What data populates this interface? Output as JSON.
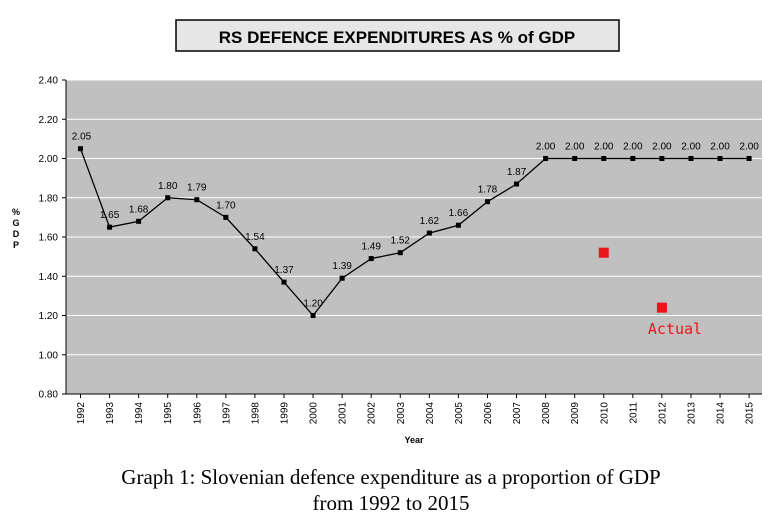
{
  "chart_data": {
    "type": "line",
    "title": "RS DEFENCE EXPENDITURES AS % of GDP",
    "xlabel": "Year",
    "ylabel": "% G D P",
    "ylim": [
      0.8,
      2.4
    ],
    "yticks": [
      "0.80",
      "1.00",
      "1.20",
      "1.40",
      "1.60",
      "1.80",
      "2.00",
      "2.20",
      "2.40"
    ],
    "grid": true,
    "categories": [
      "1992",
      "1993",
      "1994",
      "1995",
      "1996",
      "1997",
      "1998",
      "1999",
      "2000",
      "2001",
      "2002",
      "2003",
      "2004",
      "2005",
      "2006",
      "2007",
      "2008",
      "2009",
      "2010",
      "2011",
      "2012",
      "2013",
      "2014",
      "2015"
    ],
    "series": [
      {
        "values": [
          2.05,
          1.65,
          1.68,
          1.8,
          1.79,
          1.7,
          1.54,
          1.37,
          1.2,
          1.39,
          1.49,
          1.52,
          1.62,
          1.66,
          1.78,
          1.87,
          2.0,
          2.0,
          2.0,
          2.0,
          2.0,
          2.0,
          2.0,
          2.0
        ],
        "labels": [
          "2.05",
          "1.65",
          "1.68",
          "1.80",
          "1.79",
          "1.70",
          "1.54",
          "1.37",
          "1.20",
          "1.39",
          "1.49",
          "1.52",
          "1.62",
          "1.66",
          "1.78",
          "1.87",
          "2.00",
          "2.00",
          "2.00",
          "2.00",
          "2.00",
          "2.00",
          "2.00",
          "2.00"
        ],
        "color": "#000000"
      }
    ],
    "actual": {
      "label": "Actual",
      "color": "#e8161b",
      "points": [
        {
          "x": "2010",
          "y": 1.52
        },
        {
          "x": "2012",
          "y": 1.24
        }
      ]
    }
  },
  "caption": {
    "line1": "Graph 1: Slovenian defence expenditure as a proportion of GDP",
    "line2": "from 1992 to 2015"
  }
}
